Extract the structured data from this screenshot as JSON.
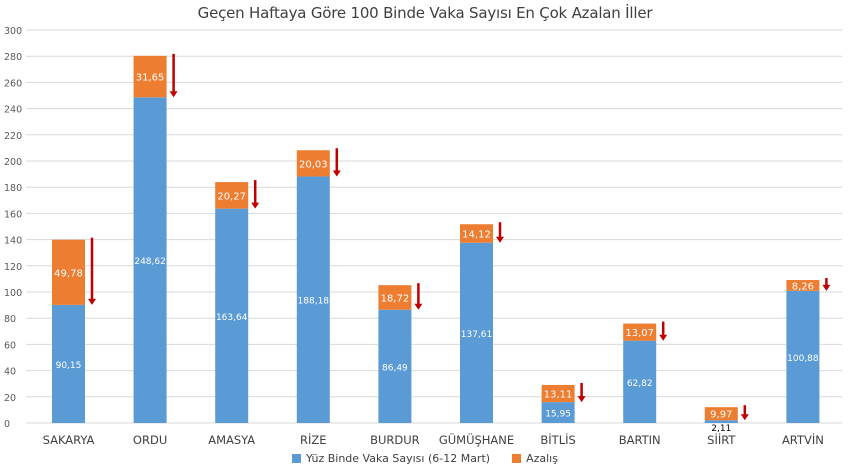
{
  "chart_data": {
    "type": "bar",
    "stacked": true,
    "title": "Geçen Haftaya Göre 100 Binde Vaka Sayısı En Çok Azalan İller",
    "categories": [
      "SAKARYA",
      "ORDU",
      "AMASYA",
      "RİZE",
      "BURDUR",
      "GÜMÜŞHANE",
      "BİTLİS",
      "BARTIN",
      "SİİRT",
      "ARTVİN"
    ],
    "series": [
      {
        "name": "Yüz Binde Vaka Sayısı (6-12 Mart)",
        "color": "#5b9bd5",
        "values": [
          90.15,
          248.62,
          163.64,
          188.18,
          86.49,
          137.61,
          15.95,
          62.82,
          2.11,
          100.88
        ],
        "labels": [
          "90,15",
          "248,62",
          "163,64",
          "188,18",
          "86,49",
          "137,61",
          "15,95",
          "62,82",
          "2,11",
          "100,88"
        ]
      },
      {
        "name": "Azalış",
        "color": "#ed7d31",
        "values": [
          49.78,
          31.65,
          20.27,
          20.03,
          18.72,
          14.12,
          13.11,
          13.07,
          9.97,
          8.26
        ],
        "labels": [
          "49,78",
          "31,65",
          "20,27",
          "20,03",
          "18,72",
          "14,12",
          "13,11",
          "13,07",
          "9,97",
          "8,26"
        ]
      }
    ],
    "ylim": [
      0,
      300
    ],
    "yticks": [
      0,
      20,
      40,
      60,
      80,
      100,
      120,
      140,
      160,
      180,
      200,
      220,
      240,
      260,
      280,
      300
    ],
    "grid": true,
    "legend": "bottom",
    "arrow_color": "#c00000"
  }
}
